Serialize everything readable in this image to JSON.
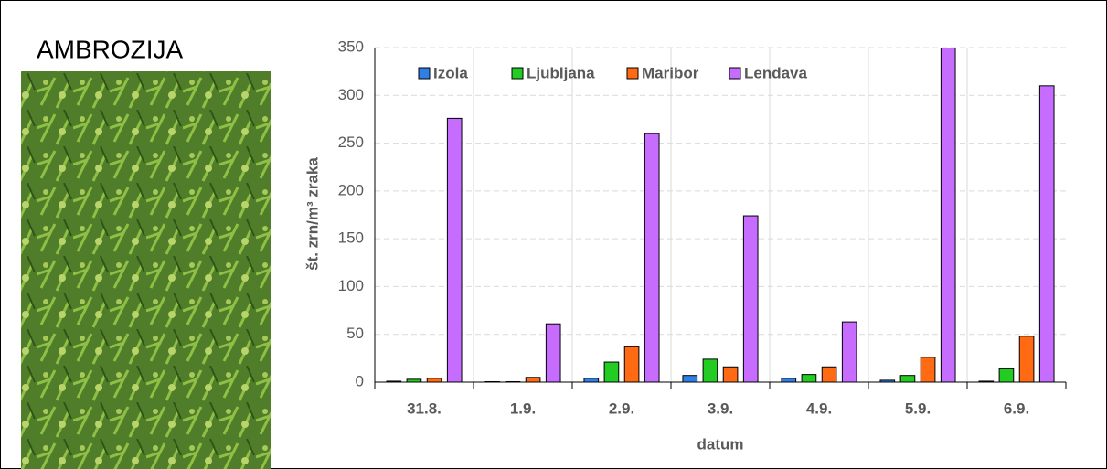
{
  "chart_data": {
    "type": "bar",
    "title": "AMBROZIJA",
    "x_label": "datum",
    "y_label": "št. zrn/m³ zraka",
    "categories": [
      "31.8.",
      "1.9.",
      "2.9.",
      "3.9.",
      "4.9.",
      "5.9.",
      "6.9."
    ],
    "series": [
      {
        "name": "Izola",
        "color": "#2f7fe6",
        "values": [
          1,
          0.5,
          4,
          7,
          4,
          2,
          1
        ]
      },
      {
        "name": "Ljubljana",
        "color": "#22cc22",
        "values": [
          3,
          0.5,
          21,
          24,
          8,
          7,
          14
        ]
      },
      {
        "name": "Maribor",
        "color": "#ff6a13",
        "values": [
          4,
          5,
          37,
          16,
          16,
          26,
          48
        ]
      },
      {
        "name": "Lendava",
        "color": "#c66cff",
        "values": [
          276,
          61,
          260,
          174,
          63,
          360,
          310
        ]
      }
    ],
    "ylim": [
      0,
      350
    ],
    "yticks": [
      0,
      50,
      100,
      150,
      200,
      250,
      300,
      350
    ],
    "grid": true,
    "legend": "top"
  }
}
